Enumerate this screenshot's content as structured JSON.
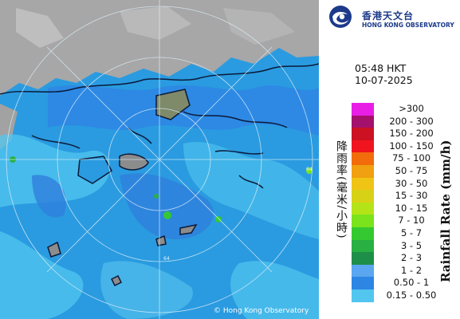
{
  "org": {
    "name_zh": "香港天文台",
    "name_en": "HONG KONG OBSERVATORY"
  },
  "time": "05:48 HKT",
  "date": "10-07-2025",
  "copyright": "© Hong Kong Observatory",
  "legend": {
    "title_zh": "降雨率(毫米/小時)",
    "title_en": "Rainfall Rate (mm/h)",
    "items": [
      {
        "label": ">300",
        "color": "#e81ee6"
      },
      {
        "label": "200 - 300",
        "color": "#a3116c"
      },
      {
        "label": "150 - 200",
        "color": "#cc1122"
      },
      {
        "label": "100 - 150",
        "color": "#f0141e"
      },
      {
        "label": "75 - 100",
        "color": "#f26c0c"
      },
      {
        "label": "50 - 75",
        "color": "#f0a010"
      },
      {
        "label": "30 - 50",
        "color": "#f0c414"
      },
      {
        "label": "15 - 30",
        "color": "#d8d216"
      },
      {
        "label": "10 - 15",
        "color": "#b4e418"
      },
      {
        "label": "7 - 10",
        "color": "#7ae31c"
      },
      {
        "label": "5 - 7",
        "color": "#35c931"
      },
      {
        "label": "3 - 5",
        "color": "#29b043"
      },
      {
        "label": "2 - 3",
        "color": "#1e8f48"
      },
      {
        "label": "1 - 2",
        "color": "#5aa6f0"
      },
      {
        "label": "0.50 - 1",
        "color": "#2e86e4"
      },
      {
        "label": "0.15 - 0.50",
        "color": "#52c6ef"
      }
    ]
  },
  "map": {
    "ring_labels": [
      "64",
      "64"
    ],
    "colors": {
      "sea": "#2a9be0",
      "land": "#a9a9a9",
      "rain_light": "#52c6ef",
      "rain_mid": "#2e86e4",
      "rain_green": "#29b043",
      "coast": "#0b1a3a"
    }
  }
}
